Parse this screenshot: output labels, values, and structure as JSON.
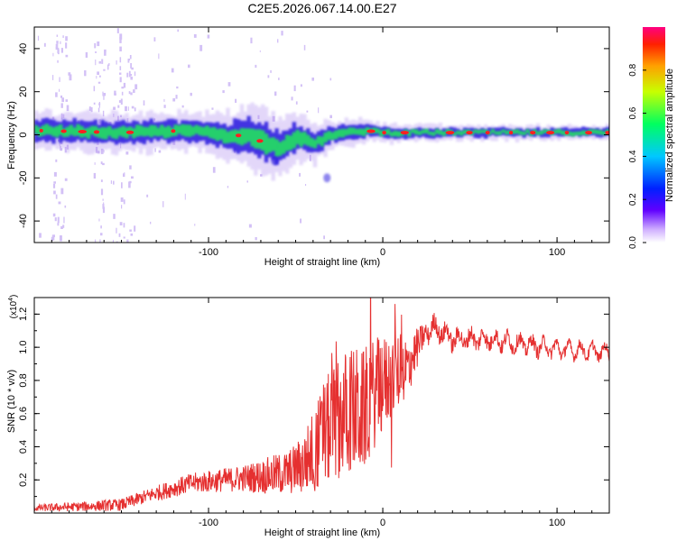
{
  "title": "C2E5.2026.067.14.00.E27",
  "colors": {
    "snr_line": "#e53030",
    "axis": "#000000",
    "band_core": "#ff2020",
    "band_mid": "#20e060",
    "band_edge": "#3020e0",
    "halo": "#b090f0"
  },
  "chart_data": [
    {
      "type": "heatmap",
      "name": "spectrogram",
      "xlabel": "Height of straight line (km)",
      "ylabel": "Frequency (Hz)",
      "xlim": [
        -200,
        130
      ],
      "ylim": [
        -50,
        50
      ],
      "x_ticks": [
        -100,
        0,
        100
      ],
      "x_tick_labels": [
        "-100",
        "0",
        "100"
      ],
      "y_ticks": [
        -40,
        -20,
        0,
        20,
        40
      ],
      "y_tick_labels": [
        "-40",
        "-20",
        "0",
        "20",
        "40"
      ],
      "colorbar": {
        "label": "Normalized spectral amplitude",
        "range": [
          0,
          1
        ],
        "ticks": [
          0.0,
          0.2,
          0.4,
          0.6,
          0.8
        ],
        "tick_labels": [
          "0.0",
          "0.2",
          "0.4",
          "0.6",
          "0.8"
        ]
      },
      "band_center_hz": [
        [
          -200,
          2
        ],
        [
          -150,
          1
        ],
        [
          -110,
          2
        ],
        [
          -100,
          1
        ],
        [
          -90,
          -1
        ],
        [
          -80,
          0
        ],
        [
          -70,
          -3
        ],
        [
          -60,
          -6
        ],
        [
          -50,
          -1
        ],
        [
          -40,
          -4
        ],
        [
          -30,
          0
        ],
        [
          -20,
          1
        ],
        [
          -10,
          2
        ],
        [
          0,
          1
        ],
        [
          20,
          1
        ],
        [
          60,
          1
        ],
        [
          100,
          1
        ],
        [
          130,
          1
        ]
      ],
      "band_halfwidth_hz": [
        [
          -200,
          4
        ],
        [
          -100,
          4
        ],
        [
          -70,
          7
        ],
        [
          -50,
          5
        ],
        [
          -30,
          3
        ],
        [
          0,
          2
        ],
        [
          40,
          1.5
        ],
        [
          130,
          1.5
        ]
      ],
      "annotations": [
        {
          "x_km": -62,
          "freq_hz": -12,
          "amplitude": 0.3
        },
        {
          "x_km": -32,
          "freq_hz": -20,
          "amplitude": 0.15
        }
      ]
    },
    {
      "type": "line",
      "name": "snr",
      "xlabel": "Height of straight line (km)",
      "ylabel": "SNR (10 * v/v)",
      "ylabel_scale": "(x10",
      "ylabel_scale_exp": "4",
      "ylabel_scale_close": ")",
      "xlim": [
        -200,
        130
      ],
      "ylim": [
        0,
        1.3
      ],
      "x_ticks": [
        -100,
        0,
        100
      ],
      "x_tick_labels": [
        "-100",
        "0",
        "100"
      ],
      "y_ticks": [
        0.2,
        0.4,
        0.6,
        0.8,
        1.0,
        1.2
      ],
      "y_tick_labels": [
        "0.2",
        "0.4",
        "0.6",
        "0.8",
        "1.0",
        "1.2"
      ],
      "trend": [
        [
          -200,
          0.03
        ],
        [
          -170,
          0.04
        ],
        [
          -150,
          0.05
        ],
        [
          -130,
          0.12
        ],
        [
          -110,
          0.18
        ],
        [
          -90,
          0.2
        ],
        [
          -70,
          0.22
        ],
        [
          -55,
          0.24
        ],
        [
          -45,
          0.3
        ],
        [
          -35,
          0.45
        ],
        [
          -28,
          0.55
        ],
        [
          -20,
          0.62
        ],
        [
          -12,
          0.6
        ],
        [
          -5,
          0.72
        ],
        [
          5,
          0.82
        ],
        [
          15,
          0.9
        ],
        [
          25,
          1.1
        ],
        [
          30,
          1.12
        ],
        [
          40,
          1.05
        ],
        [
          60,
          1.05
        ],
        [
          80,
          1.02
        ],
        [
          100,
          0.99
        ],
        [
          130,
          0.97
        ]
      ],
      "noise_amplitude": [
        [
          -200,
          0.02
        ],
        [
          -140,
          0.04
        ],
        [
          -80,
          0.08
        ],
        [
          -50,
          0.15
        ],
        [
          -30,
          0.35
        ],
        [
          -15,
          0.4
        ],
        [
          0,
          0.3
        ],
        [
          15,
          0.18
        ],
        [
          25,
          0.06
        ],
        [
          60,
          0.05
        ],
        [
          130,
          0.03
        ]
      ]
    }
  ]
}
